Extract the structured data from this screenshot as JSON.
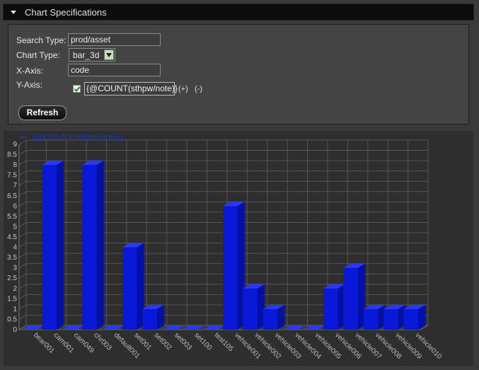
{
  "header": {
    "title": "Chart Specifications"
  },
  "form": {
    "search_type_label": "Search Type:",
    "search_type_value": "prod/asset",
    "chart_type_label": "Chart Type:",
    "chart_type_value": "bar_3d",
    "x_axis_label": "X-Axis:",
    "x_axis_value": "code",
    "y_axis_label": "Y-Axis:",
    "y_axis_value": "{@COUNT(sthpw/note)}",
    "add_label": "(+)",
    "remove_label": "(-)",
    "refresh_label": "Refresh"
  },
  "colors": {
    "bar": "#0a18d8",
    "legend": "#1a34c8"
  },
  "chart_data": {
    "type": "bar",
    "style": "3d",
    "legend": "{@COUNT(sthpw/note)}",
    "legend_position": "top-left",
    "grid": true,
    "ylim": [
      0,
      9
    ],
    "yticks": [
      "0",
      "0.5",
      "1",
      "1.5",
      "2",
      "2.5",
      "3",
      "3.5",
      "4",
      "4.5",
      "5",
      "5.5",
      "6",
      "6.5",
      "7",
      "7.5",
      "8",
      "8.5",
      "9"
    ],
    "categories": [
      "bear001",
      "cam001",
      "cam049",
      "chr003",
      "default001",
      "set001",
      "set002",
      "set003",
      "set100",
      "test105",
      "vehicle001",
      "vehicle002",
      "vehicle003",
      "vehicle004",
      "vehicle005",
      "vehicle006",
      "vehicle007",
      "vehicle008",
      "vehicle009",
      "vehicle010"
    ],
    "values": [
      0,
      8,
      0,
      8,
      0,
      4,
      1,
      0,
      0,
      0,
      6,
      2,
      1,
      0,
      0,
      2,
      3,
      1,
      1,
      1
    ]
  }
}
